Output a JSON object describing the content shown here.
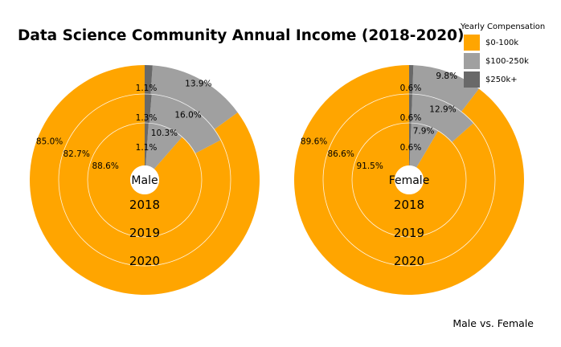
{
  "chart_data": {
    "type": "pie",
    "title": "Data Science Community Annual Income (2018-2020)",
    "caption": "Male vs. Female",
    "legend": {
      "title": "Yearly Compensation",
      "placement": "top-right",
      "entries": [
        {
          "label": "$0-100k",
          "color": "#FFA500"
        },
        {
          "label": "$100-250k",
          "color": "#A0A0A0"
        },
        {
          "label": "$250k+",
          "color": "#696969"
        }
      ]
    },
    "rings": [
      "2018",
      "2019",
      "2020"
    ],
    "panels": [
      {
        "label": "Male",
        "series": [
          {
            "year": "2018",
            "values": [
              88.6,
              10.3,
              1.1
            ],
            "labels": [
              "88.6%",
              "10.3%",
              "1.1%"
            ]
          },
          {
            "year": "2019",
            "values": [
              82.7,
              16.0,
              1.3
            ],
            "labels": [
              "82.7%",
              "16.0%",
              "1.3%"
            ]
          },
          {
            "year": "2020",
            "values": [
              85.0,
              13.9,
              1.1
            ],
            "labels": [
              "85.0%",
              "13.9%",
              "1.1%"
            ]
          }
        ]
      },
      {
        "label": "Female",
        "series": [
          {
            "year": "2018",
            "values": [
              91.5,
              7.9,
              0.6
            ],
            "labels": [
              "91.5%",
              "7.9%",
              "0.6%"
            ]
          },
          {
            "year": "2019",
            "values": [
              86.6,
              12.9,
              0.6
            ],
            "labels": [
              "86.6%",
              "12.9%",
              "0.6%"
            ]
          },
          {
            "year": "2020",
            "values": [
              89.6,
              9.8,
              0.6
            ],
            "labels": [
              "89.6%",
              "9.8%",
              "0.6%"
            ]
          }
        ]
      }
    ]
  }
}
